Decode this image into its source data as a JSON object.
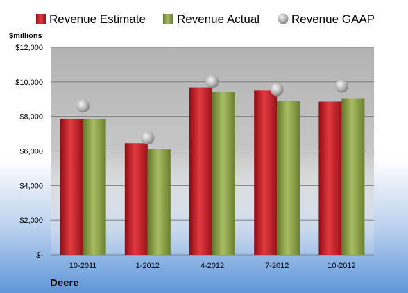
{
  "chart_data": {
    "type": "bar",
    "unit_label": "$millions",
    "company": "Deere",
    "categories": [
      "10-2011",
      "1-2012",
      "4-2012",
      "7-2012",
      "10-2012"
    ],
    "series": [
      {
        "name": "Revenue Estimate",
        "kind": "bar",
        "color": "#c0202a",
        "values": [
          7850,
          6450,
          9650,
          9500,
          8850
        ]
      },
      {
        "name": "Revenue Actual",
        "kind": "bar",
        "color": "#8fa34a",
        "values": [
          7850,
          6100,
          9400,
          8900,
          9050
        ]
      },
      {
        "name": "Revenue GAAP",
        "kind": "scatter",
        "color": "#b5b5b5",
        "values": [
          8600,
          6750,
          10000,
          9550,
          9750
        ]
      }
    ],
    "yticks": [
      "$-",
      "$2,000",
      "$4,000",
      "$6,000",
      "$8,000",
      "$10,000",
      "$12,000"
    ],
    "ylim": [
      0,
      12000
    ],
    "grid": true,
    "legend_position": "top"
  }
}
